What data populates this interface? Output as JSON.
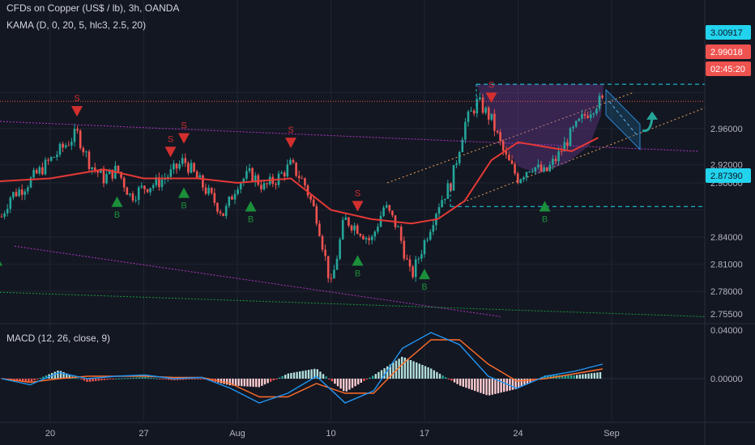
{
  "header": {
    "title": "CFDs on Copper (US$ / lb), 3h, OANDA",
    "indicator": "KAMA (D, 0, 20, 5, hlc3, 2.5, 20)",
    "macd_label": "MACD (12, 26, close, 9)"
  },
  "colors": {
    "background": "#131722",
    "grid": "#1f2430",
    "up": "#26a69a",
    "down": "#ef5350",
    "kama": "#e53935",
    "macd": "#2196f3",
    "signal": "#ff6d2a",
    "channel": "#b236c2",
    "support": "#1b9c3a",
    "trend": "#f0a35a",
    "level": "#22d3ee",
    "buy": "#1b8f3a",
    "sell": "#d32f2f"
  },
  "price_axis": {
    "ticks": [
      "2.75500",
      "2.78000",
      "2.81000",
      "2.84000",
      "2.87000",
      "2.90000",
      "2.92000",
      "2.96000",
      "3.00000"
    ]
  },
  "macd_axis": {
    "ticks": [
      "0.04000",
      "0.00000"
    ]
  },
  "time_axis": {
    "labels": [
      "20",
      "27",
      "Aug",
      "10",
      "17",
      "24",
      "Sep"
    ]
  },
  "price_tags": {
    "top_level": "3.00917",
    "current": "2.99018",
    "countdown": "02:45:20",
    "bottom_level": "2.87390"
  },
  "signals": {
    "sell_letter": "S",
    "buy_letter": "B"
  },
  "chart_data": {
    "type": "candlestick",
    "title": "CFDs on Copper (US$ / lb), 3h, OANDA",
    "x_dates": [
      "Jul 20",
      "Jul 27",
      "Aug 3",
      "Aug 10",
      "Aug 17",
      "Aug 24",
      "Aug 31"
    ],
    "ylim": [
      2.745,
      3.01
    ],
    "close_path": [
      [
        "Jul 14",
        2.905
      ],
      [
        "Jul 15",
        2.87
      ],
      [
        "Jul 16",
        2.85
      ],
      [
        "Jul 17",
        2.885
      ],
      [
        "Jul 18",
        2.895
      ],
      [
        "Jul 20",
        2.925
      ],
      [
        "Jul 21",
        2.94
      ],
      [
        "Jul 22",
        2.955
      ],
      [
        "Jul 23",
        2.92
      ],
      [
        "Jul 24",
        2.905
      ],
      [
        "Jul 25",
        2.915
      ],
      [
        "Jul 26",
        2.885
      ],
      [
        "Jul 27",
        2.895
      ],
      [
        "Jul 28",
        2.9
      ],
      [
        "Jul 29",
        2.91
      ],
      [
        "Jul 30",
        2.925
      ],
      [
        "Jul 31",
        2.905
      ],
      [
        "Aug 1",
        2.885
      ],
      [
        "Aug 2",
        2.865
      ],
      [
        "Aug 3",
        2.9
      ],
      [
        "Aug 4",
        2.91
      ],
      [
        "Aug 5",
        2.895
      ],
      [
        "Aug 6",
        2.905
      ],
      [
        "Aug 7",
        2.92
      ],
      [
        "Aug 8",
        2.9
      ],
      [
        "Aug 9",
        2.86
      ],
      [
        "Aug 10",
        2.785
      ],
      [
        "Aug 11",
        2.86
      ],
      [
        "Aug 12",
        2.85
      ],
      [
        "Aug 13",
        2.835
      ],
      [
        "Aug 14",
        2.875
      ],
      [
        "Aug 15",
        2.85
      ],
      [
        "Aug 16",
        2.795
      ],
      [
        "Aug 17",
        2.835
      ],
      [
        "Aug 18",
        2.875
      ],
      [
        "Aug 19",
        2.9
      ],
      [
        "Aug 20",
        2.965
      ],
      [
        "Aug 21",
        2.99
      ],
      [
        "Aug 22",
        2.97
      ],
      [
        "Aug 23",
        2.93
      ],
      [
        "Aug 24",
        2.905
      ],
      [
        "Aug 25",
        2.92
      ],
      [
        "Aug 26",
        2.91
      ],
      [
        "Aug 27",
        2.93
      ],
      [
        "Aug 28",
        2.955
      ],
      [
        "Aug 29",
        2.975
      ],
      [
        "Aug 30",
        2.99
      ]
    ],
    "kama": [
      [
        "Jul 14",
        2.9
      ],
      [
        "Jul 20",
        2.905
      ],
      [
        "Jul 24",
        2.915
      ],
      [
        "Jul 27",
        2.905
      ],
      [
        "Jul 31",
        2.905
      ],
      [
        "Aug 3",
        2.9
      ],
      [
        "Aug 7",
        2.905
      ],
      [
        "Aug 10",
        2.87
      ],
      [
        "Aug 13",
        2.86
      ],
      [
        "Aug 16",
        2.855
      ],
      [
        "Aug 18",
        2.86
      ],
      [
        "Aug 20",
        2.88
      ],
      [
        "Aug 22",
        2.925
      ],
      [
        "Aug 24",
        2.945
      ],
      [
        "Aug 26",
        2.94
      ],
      [
        "Aug 28",
        2.935
      ],
      [
        "Aug 30",
        2.95
      ]
    ],
    "sell_signals": [
      "Jul 14",
      "Jul 22",
      "Jul 29",
      "Jul 30",
      "Aug 7",
      "Aug 12",
      "Aug 22"
    ],
    "buy_signals": [
      "Jul 16",
      "Jul 25",
      "Jul 30",
      "Aug 4",
      "Aug 12",
      "Aug 17",
      "Aug 26"
    ],
    "levels": [
      3.00917,
      2.99018,
      2.8739
    ],
    "macd_series": [
      {
        "name": "MACD",
        "values": [
          0.0,
          -0.005,
          0.005,
          0.0,
          0.002,
          0.003,
          0.0,
          0.001,
          -0.008,
          -0.02,
          -0.012,
          0.002,
          -0.02,
          -0.01,
          0.025,
          0.038,
          0.028,
          0.002,
          -0.008,
          0.002,
          0.006,
          0.012
        ]
      },
      {
        "name": "Signal",
        "values": [
          0.0,
          -0.003,
          0.0,
          0.002,
          0.002,
          0.002,
          0.001,
          0.001,
          -0.004,
          -0.015,
          -0.015,
          -0.004,
          -0.012,
          -0.012,
          0.012,
          0.032,
          0.032,
          0.012,
          -0.002,
          0.0,
          0.004,
          0.008
        ]
      }
    ]
  }
}
